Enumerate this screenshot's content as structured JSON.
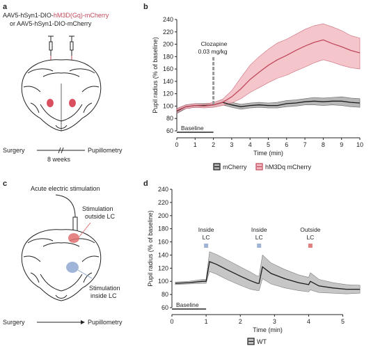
{
  "panels": {
    "a": {
      "letter": "a",
      "virus_line1_prefix": "AAV5-hSyn1-DIO-",
      "virus_line1_highlight": "hM3D(Gq)-mCherry",
      "virus_line2": "or AAV5-hSyn1-DIO-mCherry",
      "timeline_start": "Surgery",
      "timeline_end": "Pupillometry",
      "timeline_gap": "8 weeks"
    },
    "b": {
      "letter": "b"
    },
    "c": {
      "letter": "c",
      "stim_title": "Acute electric stimulation",
      "stim_outside": "Stimulation outside LC",
      "stim_outside_l1": "Stimulation",
      "stim_outside_l2": "outside LC",
      "stim_inside_l1": "Stimulation",
      "stim_inside_l2": "inside LC",
      "timeline_start": "Surgery",
      "timeline_end": "Pupillometry"
    },
    "d": {
      "letter": "d"
    }
  },
  "colors": {
    "hm3dq": "#c0485a",
    "hm3dq_band": "#f2b8c0",
    "mcherry": "#1a1a1a",
    "mcherry_band": "#b0b0b0",
    "wt_band": "#c4c4c4",
    "marker_blue": "#9fb4d4",
    "marker_red": "#e08080"
  },
  "chart_data": [
    {
      "id": "b",
      "type": "line",
      "xlabel": "Time (min)",
      "ylabel": "Pupil radius (% of baseline)",
      "xlim": [
        0,
        10
      ],
      "ylim": [
        60,
        240
      ],
      "xticks": [
        0,
        1,
        2,
        3,
        4,
        5,
        6,
        7,
        8,
        9,
        10
      ],
      "yticks": [
        60,
        80,
        100,
        120,
        140,
        160,
        180,
        200,
        220,
        240
      ],
      "baseline_label": "Baseline",
      "baseline_range": [
        0,
        2
      ],
      "annotation_l1": "Clozapine",
      "annotation_l2": "0.03 mg/kg",
      "annotation_x": 2,
      "series": [
        {
          "name": "mCherry",
          "x": [
            0,
            0.5,
            1,
            1.5,
            2,
            2.5,
            3,
            3.5,
            4,
            4.5,
            5,
            5.5,
            6,
            6.5,
            7,
            7.5,
            8,
            8.5,
            9,
            9.5,
            10
          ],
          "y": [
            92,
            99,
            101,
            101,
            102,
            106,
            102,
            99,
            101,
            102,
            101,
            101,
            104,
            105,
            107,
            108,
            107,
            108,
            108,
            106,
            105
          ],
          "lo": [
            88,
            96,
            98,
            98,
            99,
            102,
            98,
            95,
            97,
            98,
            97,
            97,
            99,
            100,
            102,
            102,
            101,
            102,
            101,
            99,
            98
          ],
          "hi": [
            96,
            102,
            104,
            104,
            105,
            110,
            106,
            103,
            105,
            106,
            105,
            106,
            109,
            110,
            112,
            114,
            113,
            114,
            115,
            113,
            112
          ]
        },
        {
          "name": "hM3Dq mCherry",
          "x": [
            0,
            0.5,
            1,
            1.5,
            2,
            2.5,
            3,
            3.5,
            4,
            4.5,
            5,
            5.5,
            6,
            6.5,
            7,
            7.5,
            8,
            8.5,
            9,
            9.5,
            10
          ],
          "y": [
            93,
            99,
            101,
            100,
            102,
            106,
            115,
            128,
            143,
            155,
            166,
            175,
            182,
            190,
            197,
            203,
            207,
            201,
            196,
            190,
            186
          ],
          "lo": [
            90,
            96,
            98,
            97,
            98,
            101,
            105,
            112,
            122,
            130,
            138,
            145,
            150,
            157,
            163,
            170,
            175,
            171,
            166,
            162,
            160
          ],
          "hi": [
            96,
            102,
            104,
            103,
            106,
            111,
            125,
            146,
            166,
            180,
            192,
            202,
            208,
            216,
            224,
            230,
            233,
            228,
            222,
            214,
            210
          ]
        }
      ]
    },
    {
      "id": "d",
      "type": "line",
      "xlabel": "Time (min)",
      "ylabel": "Pupil radius (% of baseline)",
      "xlim": [
        0,
        5.6
      ],
      "ylim": [
        60,
        240
      ],
      "xticks": [
        0,
        1,
        2,
        3,
        4,
        5
      ],
      "yticks": [
        60,
        80,
        100,
        120,
        140,
        160,
        180,
        200,
        220,
        240
      ],
      "baseline_label": "Baseline",
      "baseline_range": [
        0,
        1
      ],
      "annotations": [
        {
          "l1": "Inside",
          "l2": "LC",
          "x": 1.0,
          "marker": "blue"
        },
        {
          "l1": "Inside",
          "l2": "LC",
          "x": 2.55,
          "marker": "blue"
        },
        {
          "l1": "Outside",
          "l2": "LC",
          "x": 4.05,
          "marker": "red"
        }
      ],
      "series": [
        {
          "name": "WT",
          "x": [
            0.1,
            0.5,
            0.9,
            1.0,
            1.1,
            1.3,
            1.6,
            2.0,
            2.3,
            2.5,
            2.55,
            2.65,
            2.9,
            3.3,
            3.7,
            4.0,
            4.05,
            4.3,
            4.7,
            5.1,
            5.5
          ],
          "y": [
            97,
            98,
            100,
            100,
            130,
            126,
            118,
            108,
            101,
            97,
            97,
            122,
            112,
            104,
            98,
            95,
            100,
            93,
            90,
            88,
            88
          ],
          "lo": [
            95,
            96,
            97,
            97,
            115,
            111,
            103,
            94,
            88,
            86,
            86,
            104,
            96,
            90,
            86,
            84,
            87,
            83,
            82,
            81,
            82
          ],
          "hi": [
            99,
            100,
            103,
            103,
            145,
            141,
            133,
            122,
            114,
            108,
            108,
            140,
            128,
            118,
            110,
            106,
            113,
            103,
            98,
            95,
            94
          ]
        }
      ]
    }
  ]
}
